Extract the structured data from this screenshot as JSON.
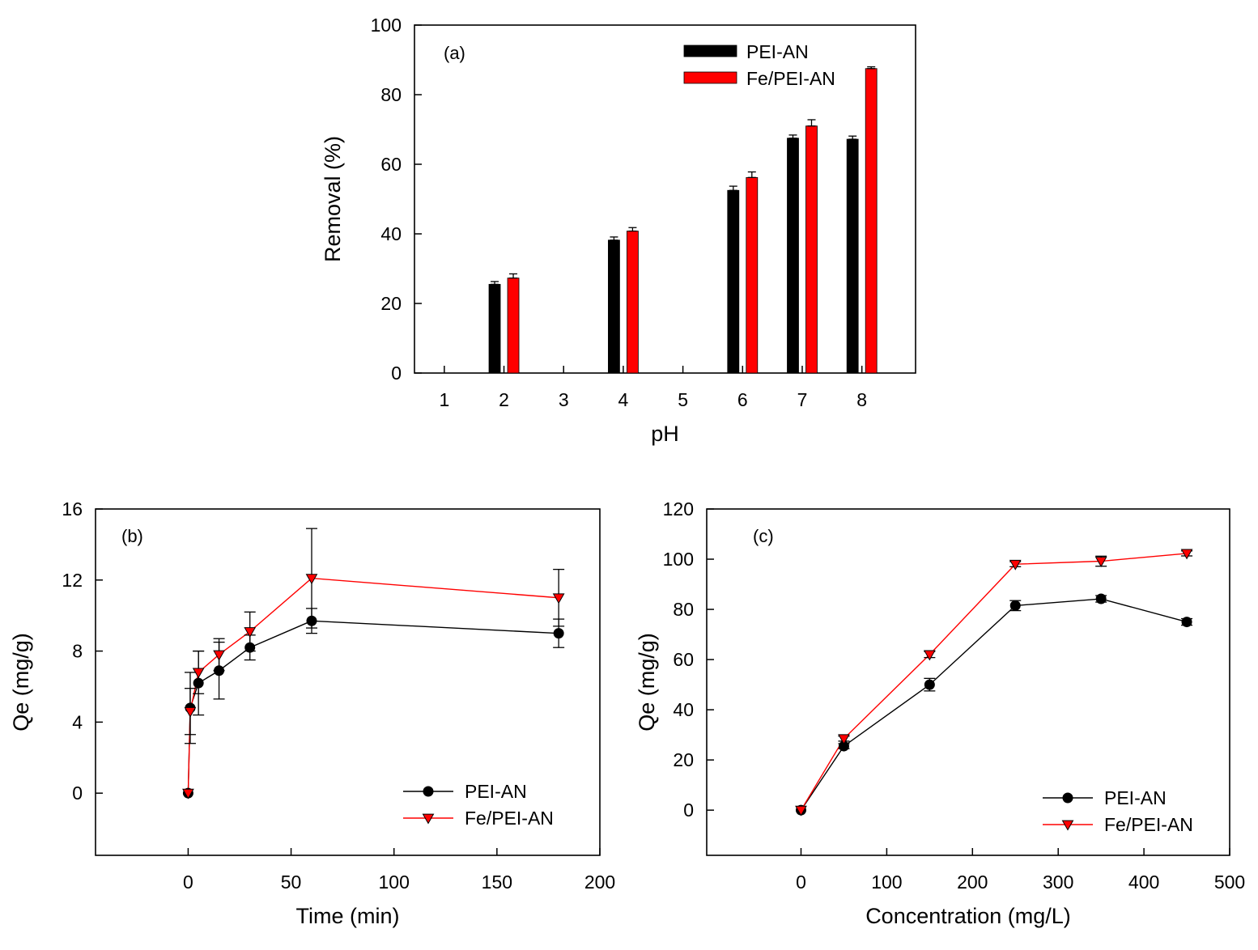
{
  "colors": {
    "series_a": "#000000",
    "series_b": "#ff0000",
    "axis": "#000000",
    "background": "#ffffff"
  },
  "chart_data": [
    {
      "id": "a",
      "type": "bar",
      "panel_label": "(a)",
      "xlabel": "pH",
      "ylabel": "Removal (%)",
      "xlim": [
        0.5,
        8.9
      ],
      "ylim": [
        0,
        100
      ],
      "x_ticks": [
        1,
        2,
        3,
        4,
        5,
        6,
        7,
        8
      ],
      "y_ticks": [
        0,
        20,
        40,
        60,
        80,
        100
      ],
      "legend_position": "top-right",
      "series": [
        {
          "name": "PEI-AN",
          "color": "#000000",
          "x": [
            2,
            4,
            6,
            7,
            8
          ],
          "values": [
            25.5,
            38.2,
            52.5,
            67.5,
            67.2
          ],
          "errors": [
            0.8,
            0.9,
            1.2,
            0.9,
            0.9
          ]
        },
        {
          "name": "Fe/PEI-AN",
          "color": "#ff0000",
          "x": [
            2,
            4,
            6,
            7,
            8
          ],
          "values": [
            27.3,
            40.8,
            56.2,
            71.0,
            87.5
          ],
          "errors": [
            1.2,
            1.0,
            1.6,
            1.8,
            0.5
          ]
        }
      ]
    },
    {
      "id": "b",
      "type": "line",
      "panel_label": "(b)",
      "xlabel": "Time (min)",
      "ylabel": "Qe (mg/g)",
      "xlim": [
        -45,
        200
      ],
      "ylim": [
        -3.5,
        16
      ],
      "x_ticks": [
        0,
        50,
        100,
        150,
        200
      ],
      "y_ticks": [
        0,
        4,
        8,
        12,
        16
      ],
      "legend_position": "bottom-right",
      "series": [
        {
          "name": "PEI-AN",
          "color": "#000000",
          "marker": "circle",
          "x": [
            0,
            1,
            5,
            15,
            30,
            60,
            180
          ],
          "y": [
            0,
            4.8,
            6.2,
            6.9,
            8.2,
            9.7,
            9.0
          ],
          "errors": [
            0,
            2.0,
            1.8,
            1.6,
            0.7,
            0.7,
            0.8
          ]
        },
        {
          "name": "Fe/PEI-AN",
          "color": "#ff0000",
          "marker": "triangle-down",
          "x": [
            0,
            1,
            5,
            15,
            30,
            60,
            180
          ],
          "y": [
            0,
            4.6,
            6.8,
            7.8,
            9.1,
            12.1,
            11.0
          ],
          "errors": [
            0,
            1.3,
            1.2,
            0.9,
            1.1,
            2.8,
            1.6
          ]
        }
      ]
    },
    {
      "id": "c",
      "type": "line",
      "panel_label": "(c)",
      "xlabel": "Concentration (mg/L)",
      "ylabel": "Qe (mg/g)",
      "xlim": [
        -110,
        500
      ],
      "ylim": [
        -18,
        120
      ],
      "x_ticks": [
        0,
        100,
        200,
        300,
        400,
        500
      ],
      "y_ticks": [
        0,
        20,
        40,
        60,
        80,
        100,
        120
      ],
      "legend_position": "bottom-right",
      "series": [
        {
          "name": "PEI-AN",
          "color": "#000000",
          "marker": "circle",
          "x": [
            0,
            50,
            150,
            250,
            350,
            450
          ],
          "y": [
            0,
            25.5,
            50.0,
            81.5,
            84.2,
            75.0
          ],
          "errors": [
            0,
            1.0,
            2.5,
            2.0,
            1.3,
            1.3
          ]
        },
        {
          "name": "Fe/PEI-AN",
          "color": "#ff0000",
          "marker": "triangle-down",
          "x": [
            0,
            50,
            150,
            250,
            350,
            450
          ],
          "y": [
            0,
            28.5,
            62.0,
            98.0,
            99.2,
            102.3
          ],
          "errors": [
            0,
            1.0,
            1.2,
            1.0,
            2.0,
            1.0
          ]
        }
      ]
    }
  ]
}
